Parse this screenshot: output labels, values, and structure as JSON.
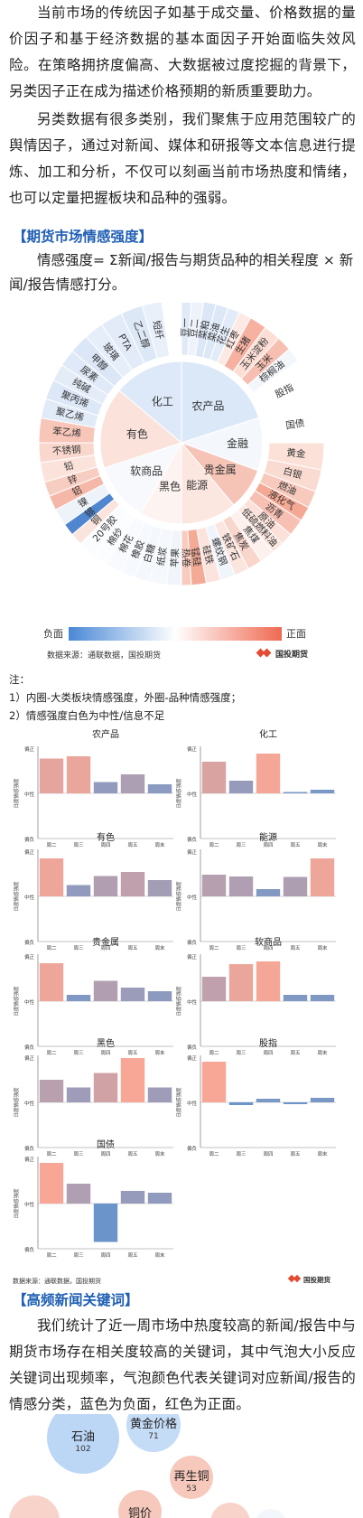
{
  "intro": {
    "p1": "当前市场的传统因子如基于成交量、价格数据的量价因子和基于经济数据的基本面因子开始面临失效风险。在策略拥挤度偏高、大数据被过度挖掘的背景下，另类因子正在成为描述价格预期的新质重要助力。",
    "p2": "另类数据有很多类别，我们聚焦于应用范围较广的舆情因子，通过对新闻、媒体和研报等文本信息进行提炼、加工和分析，不仅可以刻画当前市场热度和情绪，也可以定量把握板块和品种的强弱。"
  },
  "section1": {
    "title": "【期货市场情感强度】",
    "formula": "情感强度= Σ新闻/报告与期货品种的相关程度 × 新闻/报告情感打分。"
  },
  "sunburst": {
    "inner": [
      {
        "name": "农产品",
        "color": "#dbe8f8"
      },
      {
        "name": "金融",
        "color": "#f4f8fd"
      },
      {
        "name": "贵金属",
        "color": "#f6c4b7"
      },
      {
        "name": "能源",
        "color": "#fbe6e0"
      },
      {
        "name": "黑色",
        "color": "#fdf3f0"
      },
      {
        "name": "软商品",
        "color": "#f7f9fc"
      },
      {
        "name": "有色",
        "color": "#fbe3dc"
      },
      {
        "name": "化工",
        "color": "#dde9f8"
      }
    ],
    "outer": [
      {
        "name": "豆一",
        "color": "#dfe9f7"
      },
      {
        "name": "豆二",
        "color": "#eef3fb"
      },
      {
        "name": "菜粕",
        "color": "#dbe7f7"
      },
      {
        "name": "菜油",
        "color": "#dde8f7"
      },
      {
        "name": "花生",
        "color": "#e2ebf8"
      },
      {
        "name": "红枣",
        "color": "#fde9e3"
      },
      {
        "name": "生猪",
        "color": "#f6b1a0"
      },
      {
        "name": "玉米淀粉",
        "color": "#fcded5"
      },
      {
        "name": "玉米",
        "color": "#f7bfb1"
      },
      {
        "name": "棕榈油",
        "color": "#f3f7fc"
      },
      {
        "name": "股指",
        "color": "#ffffff"
      },
      {
        "name": "国债",
        "color": "#ffffff"
      },
      {
        "name": "黄金",
        "color": "#fce1d9"
      },
      {
        "name": "白银",
        "color": "#fadbd2"
      },
      {
        "name": "燃油",
        "color": "#f8c9bd"
      },
      {
        "name": "液化气",
        "color": "#f5a893"
      },
      {
        "name": "沥青",
        "color": "#f7c0b2"
      },
      {
        "name": "原油",
        "color": "#fbe1d9"
      },
      {
        "name": "低硫燃料油",
        "color": "#fbe6e0"
      },
      {
        "name": "焦煤",
        "color": "#fdf1ed"
      },
      {
        "name": "焦炭",
        "color": "#f9d6cc"
      },
      {
        "name": "铁矿石",
        "color": "#fbe5df"
      },
      {
        "name": "螺纹钢",
        "color": "#f0f4fb"
      },
      {
        "name": "硅铁",
        "color": "#fbe4de"
      },
      {
        "name": "锰硅",
        "color": "#f4ab96"
      },
      {
        "name": "热卷",
        "color": "#f8cbbf"
      },
      {
        "name": "苹果",
        "color": "#f1f5fb"
      },
      {
        "name": "纸浆",
        "color": "#f5f8fc"
      },
      {
        "name": "白糖",
        "color": "#f4f7fc"
      },
      {
        "name": "橡胶",
        "color": "#f6f9fd"
      },
      {
        "name": "棉花",
        "color": "#f8fafd"
      },
      {
        "name": "棉纱",
        "color": "#fcfdfe"
      },
      {
        "name": "20号胶",
        "color": "#fafcfe"
      },
      {
        "name": "铜",
        "color": "#fbe4dd"
      },
      {
        "name": "锡",
        "color": "#4f86cf"
      },
      {
        "name": "镍",
        "color": "#eef3fa"
      },
      {
        "name": "铝",
        "color": "#f5b8a8"
      },
      {
        "name": "锌",
        "color": "#f8cdc1"
      },
      {
        "name": "铅",
        "color": "#fbe3dc"
      },
      {
        "name": "不锈钢",
        "color": "#f9d7cd"
      },
      {
        "name": "苯乙烯",
        "color": "#f7c6b9"
      },
      {
        "name": "聚乙烯",
        "color": "#e1eaf7"
      },
      {
        "name": "聚丙烯",
        "color": "#dce7f7"
      },
      {
        "name": "纯碱",
        "color": "#e4ecf8"
      },
      {
        "name": "尿素",
        "color": "#dfe9f7"
      },
      {
        "name": "甲醇",
        "color": "#dbe6f6"
      },
      {
        "name": "玻璃",
        "color": "#e6eef9"
      },
      {
        "name": "PTA",
        "color": "#e3ebf8"
      },
      {
        "name": "乙二醇",
        "color": "#dde8f7"
      },
      {
        "name": "短纤",
        "color": "#e9f0fa"
      }
    ],
    "legend": {
      "negative": "负面",
      "positive": "正面"
    },
    "source": "数据来源：通联数据，国投期货",
    "logo": "国投期货"
  },
  "notes": {
    "title": "注：",
    "n1": "1）内圈-大类板块情感强度，外圈-品种情感强度；",
    "n2": "2）情感强度白色为中性/信息不足"
  },
  "bar_axis": {
    "ylabel": "日度情感强度",
    "high": "偏正",
    "mid": "中性",
    "low": "偏负"
  },
  "chart_data": [
    {
      "type": "bar",
      "title": "农产品",
      "categories": [
        "周二",
        "周三",
        "周四",
        "周五",
        "周末"
      ],
      "values": [
        0.77,
        0.82,
        0.25,
        0.42,
        0.2
      ],
      "ylim": [
        -1,
        1
      ]
    },
    {
      "type": "bar",
      "title": "化工",
      "categories": [
        "周二",
        "周三",
        "周四",
        "周五",
        "周末"
      ],
      "values": [
        0.7,
        0.28,
        0.88,
        0.03,
        0.08
      ],
      "ylim": [
        -1,
        1
      ]
    },
    {
      "type": "bar",
      "title": "有色",
      "categories": [
        "周二",
        "周三",
        "周四",
        "周五",
        "周末"
      ],
      "values": [
        0.84,
        0.25,
        0.45,
        0.54,
        0.36
      ],
      "ylim": [
        -1,
        1
      ]
    },
    {
      "type": "bar",
      "title": "能源",
      "categories": [
        "周二",
        "周三",
        "周四",
        "周五",
        "周末"
      ],
      "values": [
        0.48,
        0.44,
        0.16,
        0.43,
        0.84
      ],
      "ylim": [
        -1,
        1
      ]
    },
    {
      "type": "bar",
      "title": "贵金属",
      "categories": [
        "周二",
        "周三",
        "周四",
        "周五",
        "周末"
      ],
      "values": [
        0.84,
        0.14,
        0.45,
        0.3,
        0.22
      ],
      "ylim": [
        -1,
        1
      ]
    },
    {
      "type": "bar",
      "title": "软商品",
      "categories": [
        "周二",
        "周三",
        "周四",
        "周五",
        "周末"
      ],
      "values": [
        0.54,
        0.82,
        0.88,
        0.14,
        0.14
      ],
      "ylim": [
        -1,
        1
      ]
    },
    {
      "type": "bar",
      "title": "黑色",
      "categories": [
        "周二",
        "周三",
        "周四",
        "周五",
        "周末"
      ],
      "values": [
        0.5,
        0.33,
        0.65,
        0.98,
        0.33
      ],
      "ylim": [
        -1,
        1
      ]
    },
    {
      "type": "bar",
      "title": "股指",
      "categories": [
        "周二",
        "周三",
        "周四",
        "周五",
        "周末"
      ],
      "values": [
        0.9,
        -0.06,
        0.08,
        -0.04,
        0.1
      ],
      "ylim": [
        -1,
        1
      ]
    },
    {
      "type": "bar",
      "title": "国债",
      "categories": [
        "周二",
        "周三",
        "周四",
        "周五",
        "周末"
      ],
      "values": [
        0.9,
        0.44,
        -0.85,
        0.28,
        0.24
      ],
      "ylim": [
        -1,
        1
      ]
    }
  ],
  "bars_footer": {
    "source": "数据来源：通联数据，国投期货",
    "logo": "国投期货"
  },
  "section2": {
    "title": "【高频新闻关键词】",
    "text": "我们统计了近一周市场中热度较高的新闻/报告中与期货市场存在相关度较高的关键词，其中气泡大小反应关键词出现频率，气泡颜色代表关键词对应新闻/报告的情感分类，蓝色为负面，红色为正面。"
  },
  "bubbles": [
    {
      "label": "石油",
      "value": "102",
      "color": "#bcd6f6"
    },
    {
      "label": "黄金价格",
      "value": "71",
      "color": "#c5dcf7"
    },
    {
      "label": "再生铜",
      "value": "53",
      "color": "#f7c9bc"
    },
    {
      "label": "铜价",
      "value": "",
      "color": "#f7c9bc"
    }
  ]
}
